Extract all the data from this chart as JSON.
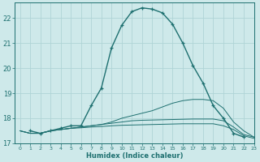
{
  "background_color": "#cee9ea",
  "grid_color": "#afd4d6",
  "line_color": "#1e7070",
  "xlabel": "Humidex (Indice chaleur)",
  "xlim": [
    -0.5,
    23
  ],
  "ylim": [
    17.0,
    22.6
  ],
  "yticks": [
    17,
    18,
    19,
    20,
    21,
    22
  ],
  "xtick_labels": [
    "0",
    "1",
    "2",
    "3",
    "4",
    "5",
    "6",
    "7",
    "8",
    "9",
    "10",
    "11",
    "12",
    "13",
    "14",
    "15",
    "16",
    "17",
    "18",
    "19",
    "20",
    "21",
    "22",
    "23"
  ],
  "curve_main_x": [
    1,
    2,
    3,
    4,
    5,
    6,
    7,
    8,
    9,
    10,
    11,
    12,
    13,
    14,
    15,
    16,
    17,
    18,
    19,
    20,
    21,
    22
  ],
  "curve_main_y": [
    17.5,
    17.4,
    17.5,
    17.6,
    17.7,
    17.7,
    18.5,
    19.2,
    20.8,
    21.7,
    22.25,
    22.4,
    22.35,
    22.2,
    21.75,
    21.0,
    20.1,
    19.4,
    18.5,
    18.0,
    17.4,
    17.25
  ],
  "curve2_x": [
    0,
    1,
    2,
    3,
    4,
    5,
    6,
    7,
    8,
    9,
    10,
    11,
    12,
    13,
    14,
    15,
    16,
    17,
    18,
    19,
    20,
    21,
    22,
    23
  ],
  "curve2_y": [
    17.5,
    17.4,
    17.4,
    17.5,
    17.55,
    17.6,
    17.65,
    17.7,
    17.75,
    17.85,
    18.0,
    18.1,
    18.2,
    18.3,
    18.45,
    18.6,
    18.7,
    18.75,
    18.75,
    18.7,
    18.4,
    17.85,
    17.5,
    17.25
  ],
  "curve3_x": [
    0,
    1,
    2,
    3,
    4,
    5,
    6,
    7,
    8,
    9,
    10,
    11,
    12,
    13,
    14,
    15,
    16,
    17,
    18,
    19,
    20,
    21,
    22,
    23
  ],
  "curve3_y": [
    17.5,
    17.4,
    17.4,
    17.5,
    17.55,
    17.6,
    17.65,
    17.7,
    17.75,
    17.8,
    17.85,
    17.9,
    17.92,
    17.93,
    17.94,
    17.95,
    17.96,
    17.97,
    17.97,
    17.97,
    17.9,
    17.65,
    17.35,
    17.25
  ],
  "curve4_x": [
    0,
    1,
    2,
    3,
    4,
    5,
    6,
    7,
    8,
    9,
    10,
    11,
    12,
    13,
    14,
    15,
    16,
    17,
    18,
    19,
    20,
    21,
    22,
    23
  ],
  "curve4_y": [
    17.5,
    17.4,
    17.4,
    17.5,
    17.55,
    17.6,
    17.62,
    17.65,
    17.67,
    17.7,
    17.72,
    17.73,
    17.74,
    17.75,
    17.76,
    17.77,
    17.78,
    17.78,
    17.78,
    17.78,
    17.7,
    17.55,
    17.3,
    17.2
  ]
}
